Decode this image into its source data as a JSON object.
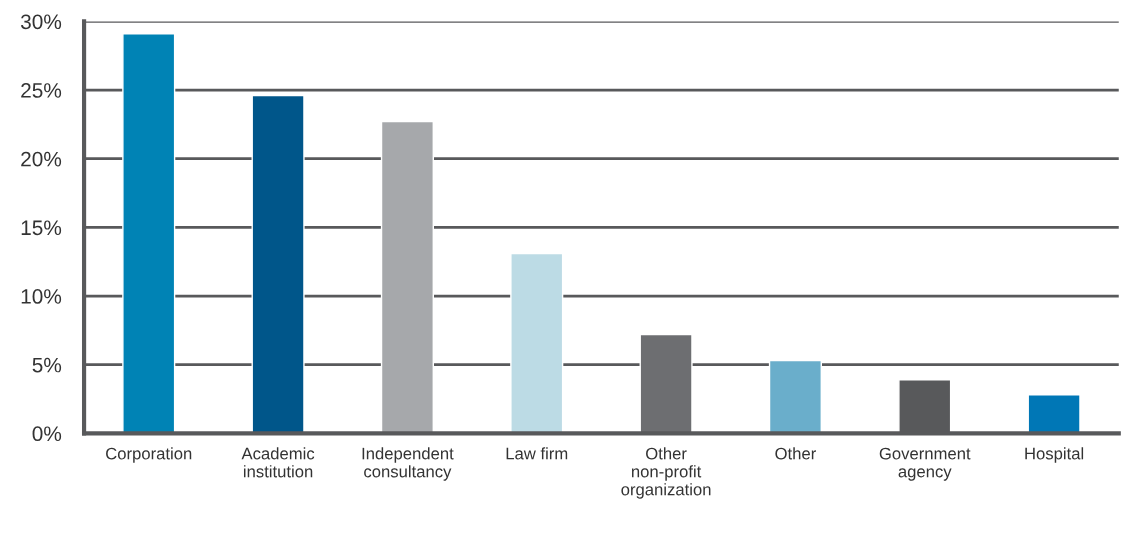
{
  "chart_data": {
    "type": "bar",
    "categories": [
      "Corporation",
      "Academic\ninstitution",
      "Independent\nconsultancy",
      "Law firm",
      "Other\nnon-profit\norganization",
      "Other",
      "Government\nagency",
      "Hospital"
    ],
    "values": [
      29.1,
      24.6,
      22.7,
      13.1,
      7.2,
      5.3,
      3.9,
      2.8
    ],
    "colors": [
      "#0083b5",
      "#00568a",
      "#a6a8ab",
      "#bcdbe5",
      "#6d6e71",
      "#6aaecb",
      "#58595b",
      "#0077b6"
    ],
    "ylim": [
      0,
      30
    ],
    "yticks": [
      {
        "value": 0,
        "label": "0%"
      },
      {
        "value": 5,
        "label": "5%"
      },
      {
        "value": 10,
        "label": "10%"
      },
      {
        "value": 15,
        "label": "15%"
      },
      {
        "value": 20,
        "label": "20%"
      },
      {
        "value": 25,
        "label": "25%"
      },
      {
        "value": 30,
        "label": "30%"
      }
    ],
    "grid": "y"
  }
}
